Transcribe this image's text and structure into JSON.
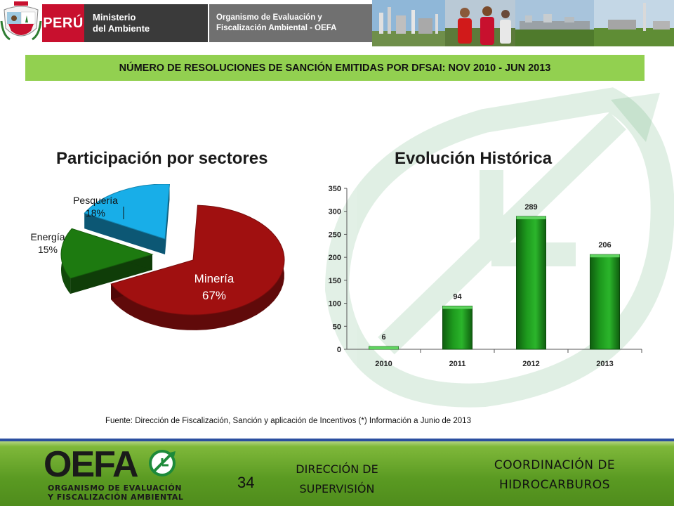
{
  "header": {
    "peru_label": "PERÚ",
    "ministry_line1": "Ministerio",
    "ministry_line2": "del Ambiente",
    "org_line1": "Organismo de Evaluación y",
    "org_line2": "Fiscalización Ambiental - OEFA"
  },
  "title_bar": "NÚMERO DE RESOLUCIONES DE SANCIÓN EMITIDAS POR DFSAI: NOV 2010 - JUN 2013",
  "chart_data": [
    {
      "type": "pie",
      "title": "Participación por sectores",
      "slices": [
        {
          "label": "Minería",
          "value": 67,
          "value_text": "67%",
          "color": "#a01010"
        },
        {
          "label": "Energía",
          "value": 15,
          "value_text": "15%",
          "color": "#1d7a10"
        },
        {
          "label": "Pesquería",
          "value": 18,
          "value_text": "18%",
          "color": "#18aee8"
        }
      ]
    },
    {
      "type": "bar",
      "title": "Evolución Histórica",
      "categories": [
        "2010",
        "2011",
        "2012",
        "2013"
      ],
      "values": [
        6,
        94,
        289,
        206
      ],
      "ylim": [
        0,
        350
      ],
      "yticks": [
        0,
        50,
        100,
        150,
        200,
        250,
        300,
        350
      ],
      "bar_color": "#1e9a1e"
    }
  ],
  "source_text": "Fuente: Dirección de Fiscalización, Sanción y aplicación de Incentivos (*) Información a Junio de 2013",
  "footer": {
    "logo_text": "OEFA",
    "logo_sub_line1": "ORGANISMO DE EVALUACIÓN",
    "logo_sub_line2": "Y FISCALIZACIÓN AMBIENTAL",
    "page_number": "34",
    "dir_line1": "DIRECCIÓN DE",
    "dir_line2": "SUPERVISIÓN",
    "coord_line1": "COORDINACIÓN DE",
    "coord_line2": "HIDROCARBUROS"
  }
}
